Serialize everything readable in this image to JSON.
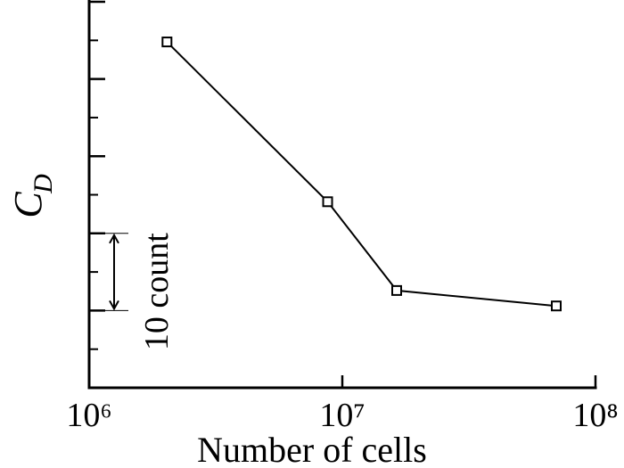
{
  "chart_data": {
    "type": "line",
    "xlabel": "Number of cells",
    "ylabel": "C",
    "ylabel_sub": "D",
    "x": [
      2030000,
      8750000,
      16400000,
      70000000
    ],
    "series": [
      {
        "color": "#000000",
        "values": [
          44.8,
          24.1,
          12.6,
          10.6
        ]
      }
    ],
    "xlog": true,
    "xlim": [
      1000000,
      100000000
    ],
    "xticks": [
      {
        "value": 1000000,
        "label": "10⁶"
      },
      {
        "value": 10000000,
        "label": "10⁷"
      },
      {
        "value": 100000000,
        "label": "10⁸"
      }
    ],
    "ylim": [
      0,
      50
    ],
    "yticks": [
      0,
      10,
      20,
      30,
      40,
      50
    ],
    "yminorticks": [
      5,
      15,
      25,
      35,
      45
    ],
    "annotation": {
      "text": "10 count",
      "y": [
        10,
        20
      ]
    }
  }
}
